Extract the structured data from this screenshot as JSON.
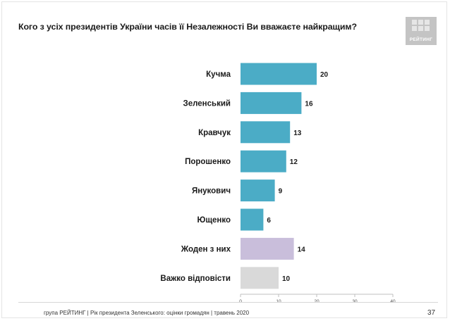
{
  "slide": {
    "title": "Кого з усіх президентів України часів її Незалежності Ви вважаєте найкращим?",
    "logo_text": "РЕЙТИНГ",
    "footer": "група РЕЙТИНГ |  Рік президента Зеленського: оцінки громадян | травень 2020",
    "page_number": "37"
  },
  "chart_data": {
    "type": "bar",
    "orientation": "horizontal",
    "categories": [
      "Кучма",
      "Зеленський",
      "Кравчук",
      "Порошенко",
      "Янукович",
      "Ющенко",
      "Жоден з них",
      "Важко відповісти"
    ],
    "values": [
      20,
      16,
      13,
      12,
      9,
      6,
      14,
      10
    ],
    "colors": [
      "#4bacc6",
      "#4bacc6",
      "#4bacc6",
      "#4bacc6",
      "#4bacc6",
      "#4bacc6",
      "#c9bedb",
      "#d9d9d9"
    ],
    "xlim": [
      0,
      40
    ],
    "xticks": [
      0,
      10,
      20,
      30,
      40
    ],
    "grid": false,
    "data_labels": true
  }
}
